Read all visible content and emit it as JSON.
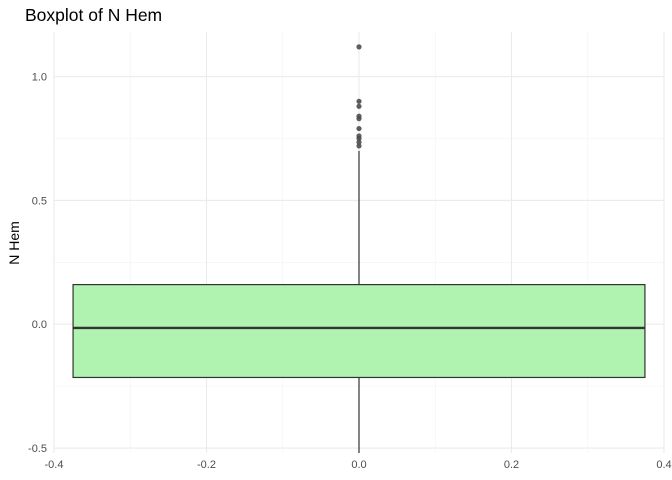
{
  "chart_data": {
    "type": "boxplot",
    "title": "Boxplot of N Hem",
    "xlabel": "",
    "ylabel": "N Hem",
    "xlim": [
      -0.4,
      0.4
    ],
    "ylim": [
      -0.52,
      1.18
    ],
    "x_ticks": [
      -0.4,
      -0.2,
      0.0,
      0.2,
      0.4
    ],
    "x_tick_labels": [
      "-0.4",
      "-0.2",
      "0.0",
      "0.2",
      "0.4"
    ],
    "y_ticks": [
      -0.5,
      0.0,
      0.5,
      1.0
    ],
    "y_tick_labels": [
      "-0.5",
      "0.0",
      "0.5",
      "1.0"
    ],
    "grid": true,
    "box": {
      "x_center": 0.0,
      "x_left": -0.375,
      "x_right": 0.375,
      "whisker_low": -0.52,
      "q1": -0.215,
      "median": -0.015,
      "q3": 0.16,
      "whisker_high": 0.7,
      "fill": "#b0f2b0",
      "stroke": "#333333"
    },
    "outliers": [
      0.72,
      0.735,
      0.75,
      0.76,
      0.79,
      0.83,
      0.84,
      0.88,
      0.9,
      1.12
    ],
    "outlier_color": "#4d4d4d"
  }
}
